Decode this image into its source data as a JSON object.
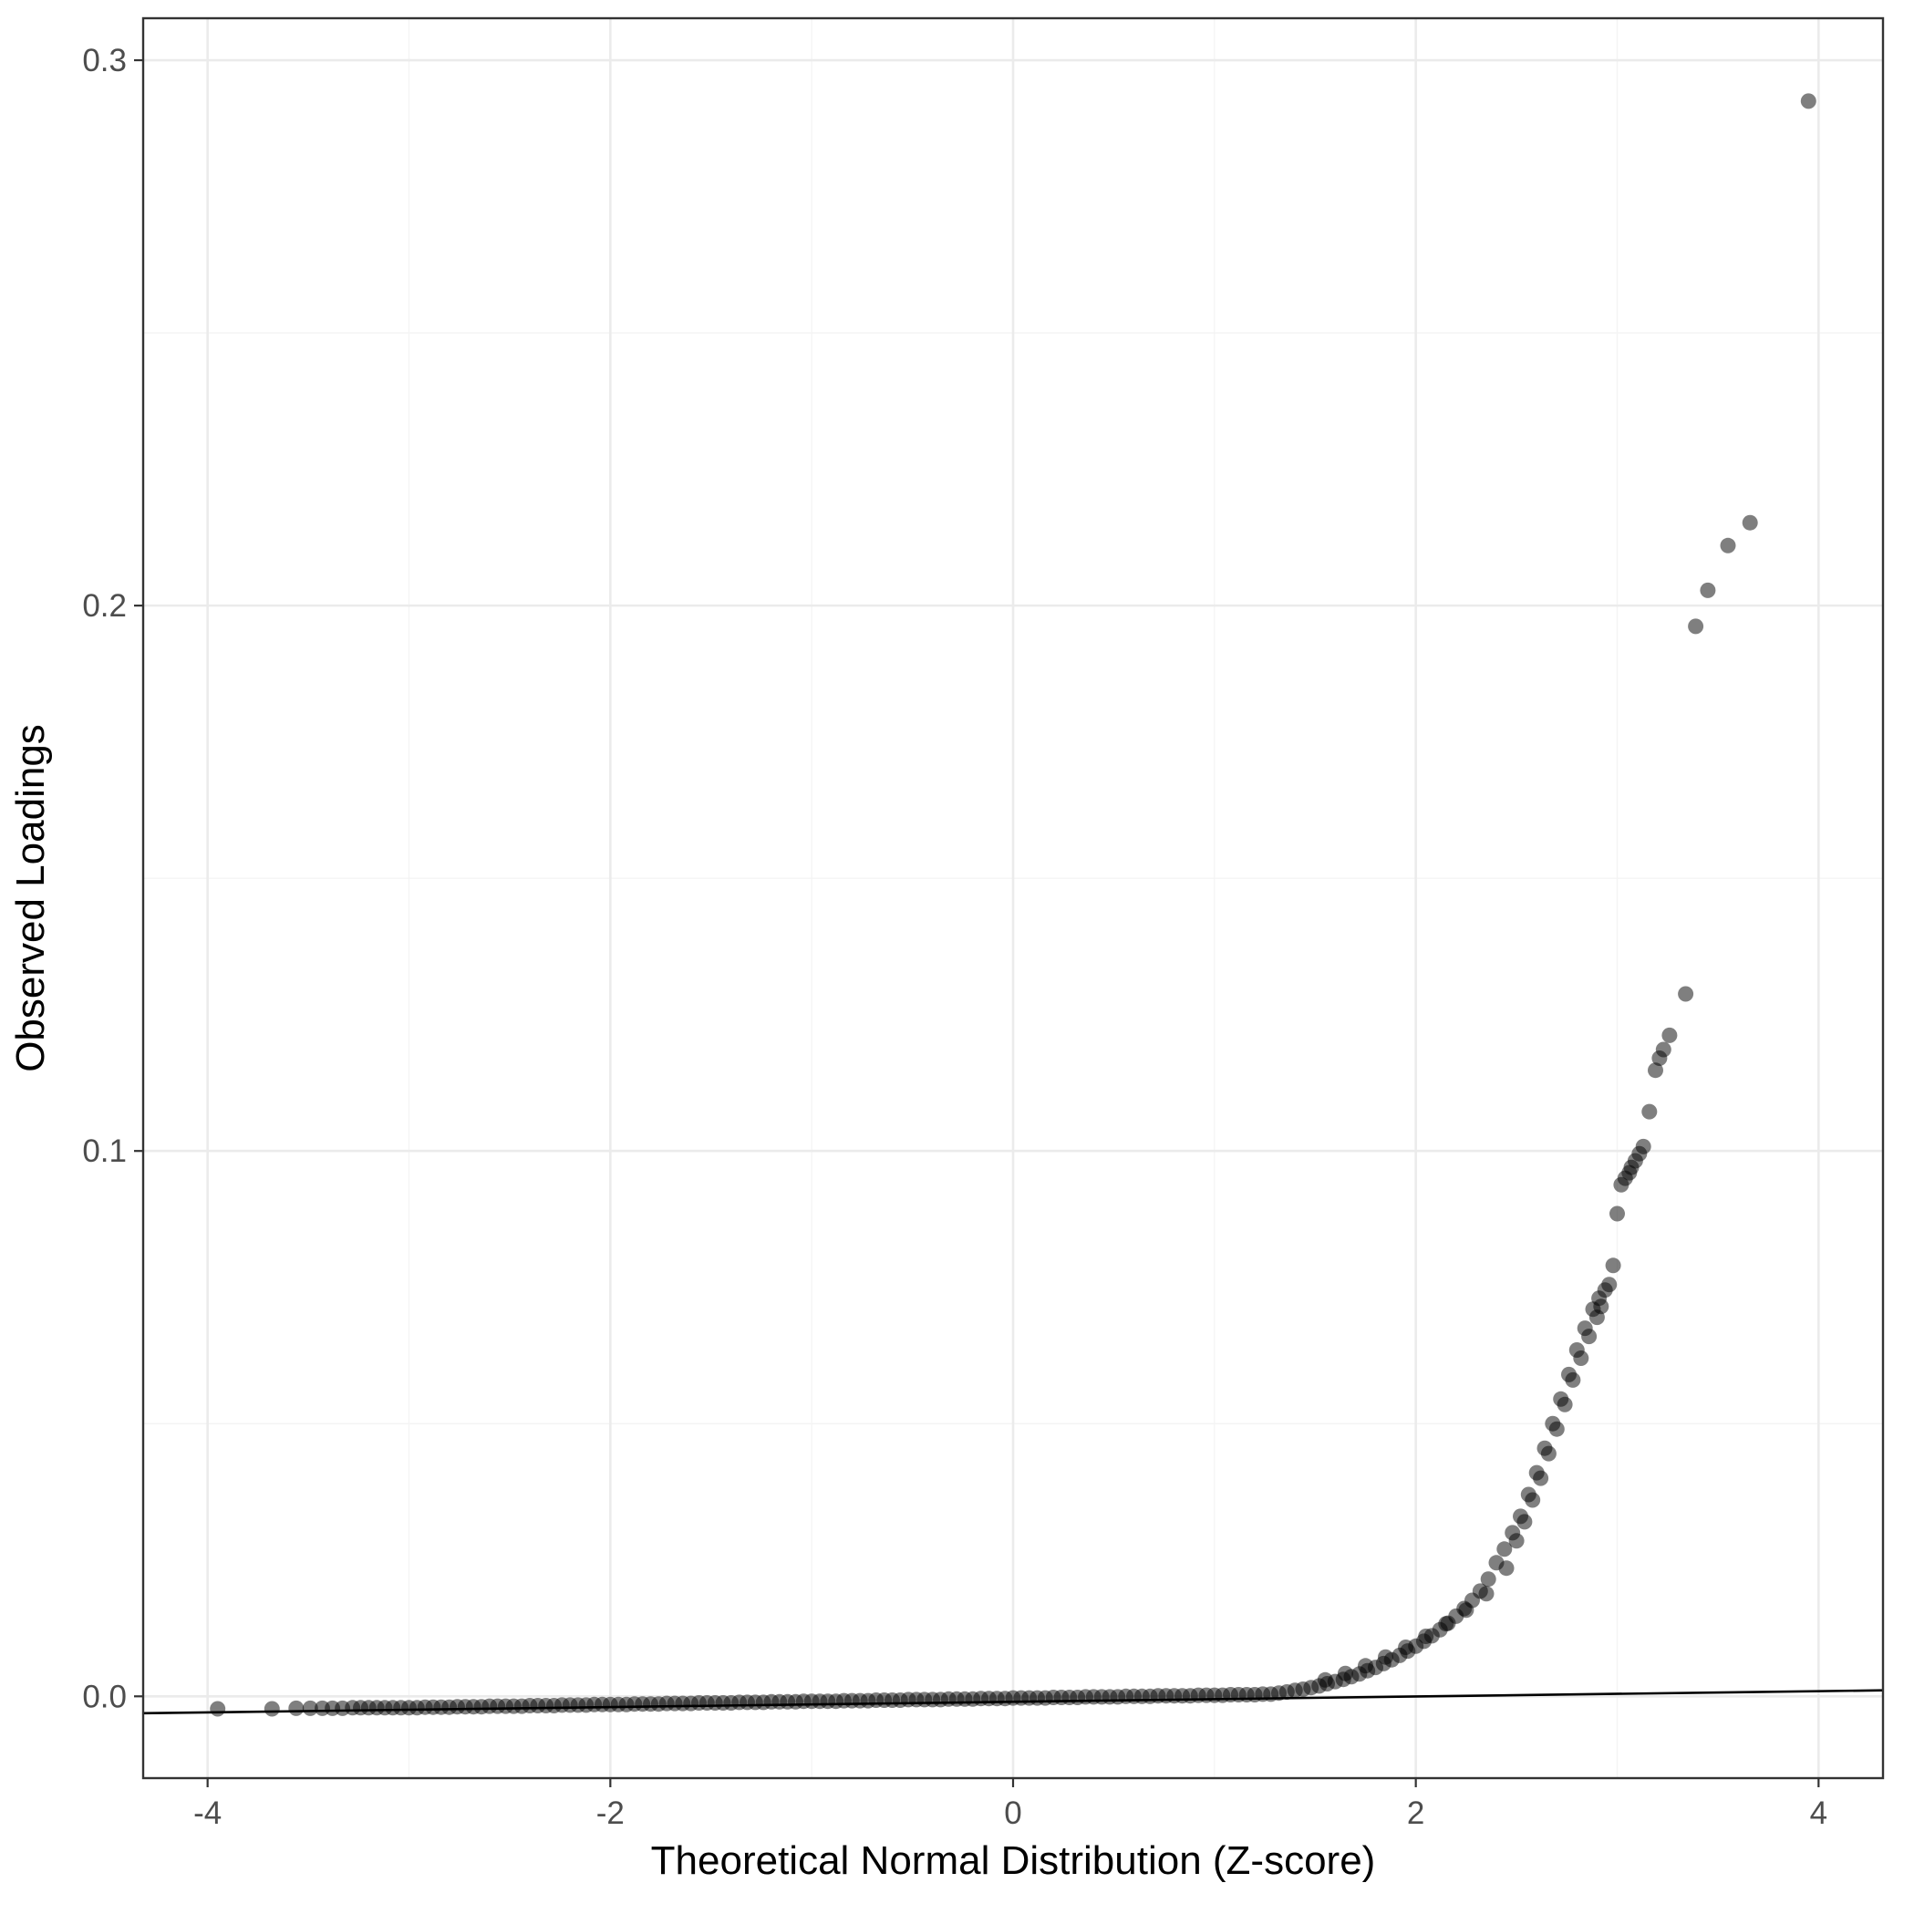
{
  "figure": {
    "background": "#ffffff"
  },
  "colors": {
    "grid_major": "#ebebeb",
    "grid_minor": "#f4f4f4",
    "panel_border": "#333333",
    "tick_text": "#4d4d4d",
    "point_color": "#000000",
    "reference_line_color": "#000000"
  },
  "chart_data": {
    "type": "scatter",
    "title": "",
    "xlabel": "Theoretical Normal Distribution (Z-score)",
    "ylabel": "Observed Loadings",
    "xlim": [
      -4.32,
      4.32
    ],
    "ylim": [
      -0.015,
      0.3077
    ],
    "grid": true,
    "legend_position": "none",
    "x_major_ticks": [
      -4,
      -2,
      0,
      2,
      4
    ],
    "x_tick_labels": [
      "-4",
      "-2",
      "0",
      "2",
      "4"
    ],
    "x_minor_ticks": [
      -3,
      -1,
      1,
      3
    ],
    "y_major_ticks": [
      0.0,
      0.1,
      0.2,
      0.3
    ],
    "y_tick_labels": [
      "0.0",
      "0.1",
      "0.2",
      "0.3"
    ],
    "y_minor_ticks": [
      0.05,
      0.15,
      0.25
    ],
    "point_opacity": 0.5,
    "reference_line": {
      "x1": -4.32,
      "y1": -0.0031,
      "x2": 4.32,
      "y2": 0.0011
    },
    "points": [
      [
        -3.95,
        -0.0023
      ],
      [
        -3.68,
        -0.0023
      ],
      [
        -3.56,
        -0.0022
      ],
      [
        -3.49,
        -0.0022
      ],
      [
        -3.43,
        -0.0022
      ],
      [
        -3.38,
        -0.0022
      ],
      [
        -3.33,
        -0.0022
      ],
      [
        -3.28,
        -0.0021
      ],
      [
        -3.24,
        -0.0021
      ],
      [
        -3.2,
        -0.0021
      ],
      [
        -3.16,
        -0.0021
      ],
      [
        -3.12,
        -0.0021
      ],
      [
        -3.08,
        -0.0021
      ],
      [
        -3.04,
        -0.0021
      ],
      [
        -3.0,
        -0.0021
      ],
      [
        -2.96,
        -0.0021
      ],
      [
        -2.92,
        -0.002
      ],
      [
        -2.88,
        -0.002
      ],
      [
        -2.84,
        -0.002
      ],
      [
        -2.8,
        -0.002
      ],
      [
        -2.76,
        -0.0019
      ],
      [
        -2.72,
        -0.0019
      ],
      [
        -2.68,
        -0.0019
      ],
      [
        -2.64,
        -0.0019
      ],
      [
        -2.6,
        -0.0018
      ],
      [
        -2.56,
        -0.0018
      ],
      [
        -2.52,
        -0.0018
      ],
      [
        -2.48,
        -0.0018
      ],
      [
        -2.44,
        -0.0018
      ],
      [
        -2.4,
        -0.0017
      ],
      [
        -2.36,
        -0.0017
      ],
      [
        -2.32,
        -0.0017
      ],
      [
        -2.28,
        -0.0017
      ],
      [
        -2.24,
        -0.0016
      ],
      [
        -2.2,
        -0.0016
      ],
      [
        -2.16,
        -0.0016
      ],
      [
        -2.12,
        -0.0016
      ],
      [
        -2.08,
        -0.0015
      ],
      [
        -2.04,
        -0.0015
      ],
      [
        -2.0,
        -0.0015
      ],
      [
        -1.96,
        -0.0015
      ],
      [
        -1.92,
        -0.0015
      ],
      [
        -1.88,
        -0.0014
      ],
      [
        -1.84,
        -0.0014
      ],
      [
        -1.8,
        -0.0014
      ],
      [
        -1.76,
        -0.0014
      ],
      [
        -1.72,
        -0.0013
      ],
      [
        -1.68,
        -0.0013
      ],
      [
        -1.64,
        -0.0013
      ],
      [
        -1.6,
        -0.0013
      ],
      [
        -1.56,
        -0.0012
      ],
      [
        -1.52,
        -0.0012
      ],
      [
        -1.48,
        -0.0012
      ],
      [
        -1.44,
        -0.0012
      ],
      [
        -1.4,
        -0.0012
      ],
      [
        -1.36,
        -0.0011
      ],
      [
        -1.32,
        -0.0011
      ],
      [
        -1.28,
        -0.0011
      ],
      [
        -1.24,
        -0.0011
      ],
      [
        -1.2,
        -0.001
      ],
      [
        -1.16,
        -0.001
      ],
      [
        -1.12,
        -0.001
      ],
      [
        -1.08,
        -0.001
      ],
      [
        -1.04,
        -0.0009
      ],
      [
        -1.0,
        -0.0009
      ],
      [
        -0.96,
        -0.0009
      ],
      [
        -0.92,
        -0.0009
      ],
      [
        -0.88,
        -0.0009
      ],
      [
        -0.84,
        -0.0008
      ],
      [
        -0.8,
        -0.0008
      ],
      [
        -0.76,
        -0.0008
      ],
      [
        -0.72,
        -0.0008
      ],
      [
        -0.68,
        -0.0007
      ],
      [
        -0.64,
        -0.0007
      ],
      [
        -0.6,
        -0.0007
      ],
      [
        -0.56,
        -0.0007
      ],
      [
        -0.52,
        -0.0006
      ],
      [
        -0.48,
        -0.0006
      ],
      [
        -0.44,
        -0.0006
      ],
      [
        -0.4,
        -0.0006
      ],
      [
        -0.36,
        -0.0006
      ],
      [
        -0.32,
        -0.0005
      ],
      [
        -0.28,
        -0.0005
      ],
      [
        -0.24,
        -0.0005
      ],
      [
        -0.2,
        -0.0005
      ],
      [
        -0.16,
        -0.0004
      ],
      [
        -0.12,
        -0.0004
      ],
      [
        -0.08,
        -0.0004
      ],
      [
        -0.04,
        -0.0004
      ],
      [
        0.0,
        -0.0003
      ],
      [
        0.04,
        -0.0003
      ],
      [
        0.08,
        -0.0003
      ],
      [
        0.12,
        -0.0003
      ],
      [
        0.16,
        -0.0003
      ],
      [
        0.2,
        -0.0002
      ],
      [
        0.24,
        -0.0002
      ],
      [
        0.28,
        -0.0002
      ],
      [
        0.32,
        -0.0002
      ],
      [
        0.36,
        -0.0001
      ],
      [
        0.4,
        -0.0001
      ],
      [
        0.44,
        -0.0001
      ],
      [
        0.48,
        -0.0001
      ],
      [
        0.52,
        -0.0001
      ],
      [
        0.56,
        0.0
      ],
      [
        0.6,
        0.0
      ],
      [
        0.64,
        0.0
      ],
      [
        0.68,
        0.0
      ],
      [
        0.72,
        0.0001
      ],
      [
        0.76,
        0.0001
      ],
      [
        0.8,
        0.0001
      ],
      [
        0.84,
        0.0001
      ],
      [
        0.88,
        0.0001
      ],
      [
        0.92,
        0.0002
      ],
      [
        0.96,
        0.0002
      ],
      [
        1.0,
        0.0002
      ],
      [
        1.04,
        0.0002
      ],
      [
        1.08,
        0.0003
      ],
      [
        1.12,
        0.0003
      ],
      [
        1.16,
        0.0003
      ],
      [
        1.2,
        0.0003
      ],
      [
        1.24,
        0.0004
      ],
      [
        1.28,
        0.0004
      ],
      [
        1.32,
        0.0006
      ],
      [
        1.36,
        0.0008
      ],
      [
        1.4,
        0.0011
      ],
      [
        1.44,
        0.0013
      ],
      [
        1.48,
        0.0016
      ],
      [
        1.52,
        0.0019
      ],
      [
        1.56,
        0.0023
      ],
      [
        1.6,
        0.0027
      ],
      [
        1.64,
        0.0031
      ],
      [
        1.68,
        0.0036
      ],
      [
        1.72,
        0.0041
      ],
      [
        1.76,
        0.0047
      ],
      [
        1.8,
        0.0053
      ],
      [
        1.84,
        0.006
      ],
      [
        1.88,
        0.0067
      ],
      [
        1.92,
        0.0075
      ],
      [
        1.96,
        0.0083
      ],
      [
        2.0,
        0.0092
      ],
      [
        2.04,
        0.0101
      ],
      [
        2.08,
        0.0111
      ],
      [
        2.12,
        0.0122
      ],
      [
        2.16,
        0.0134
      ],
      [
        2.2,
        0.0147
      ],
      [
        2.24,
        0.0161
      ],
      [
        2.28,
        0.0176
      ],
      [
        2.32,
        0.0193
      ],
      [
        2.36,
        0.0215
      ],
      [
        2.4,
        0.0245
      ],
      [
        2.44,
        0.027
      ],
      [
        2.48,
        0.03
      ],
      [
        2.52,
        0.033
      ],
      [
        2.56,
        0.037
      ],
      [
        2.6,
        0.041
      ],
      [
        2.64,
        0.0455
      ],
      [
        2.68,
        0.05
      ],
      [
        2.72,
        0.0545
      ],
      [
        2.76,
        0.059
      ],
      [
        2.8,
        0.0635
      ],
      [
        2.84,
        0.0675
      ],
      [
        2.88,
        0.071
      ],
      [
        2.91,
        0.073
      ],
      [
        2.94,
        0.0745
      ],
      [
        2.96,
        0.0755
      ],
      [
        1.55,
        0.003
      ],
      [
        1.65,
        0.0042
      ],
      [
        1.75,
        0.0056
      ],
      [
        1.85,
        0.0072
      ],
      [
        1.95,
        0.009
      ],
      [
        2.05,
        0.011
      ],
      [
        2.15,
        0.0133
      ],
      [
        2.25,
        0.0158
      ],
      [
        2.35,
        0.0188
      ],
      [
        2.45,
        0.0235
      ],
      [
        2.5,
        0.0285
      ],
      [
        2.54,
        0.032
      ],
      [
        2.58,
        0.036
      ],
      [
        2.62,
        0.04
      ],
      [
        2.66,
        0.0445
      ],
      [
        2.7,
        0.049
      ],
      [
        2.74,
        0.0535
      ],
      [
        2.78,
        0.058
      ],
      [
        2.82,
        0.062
      ],
      [
        2.86,
        0.066
      ],
      [
        2.9,
        0.0695
      ],
      [
        2.92,
        0.0715
      ],
      [
        2.98,
        0.079
      ],
      [
        3.0,
        0.0885
      ],
      [
        3.02,
        0.0938
      ],
      [
        3.04,
        0.095
      ],
      [
        3.06,
        0.096
      ],
      [
        3.07,
        0.097
      ],
      [
        3.09,
        0.0982
      ],
      [
        3.11,
        0.0995
      ],
      [
        3.13,
        0.1008
      ],
      [
        3.16,
        0.1072
      ],
      [
        3.19,
        0.1148
      ],
      [
        3.21,
        0.117
      ],
      [
        3.23,
        0.1186
      ],
      [
        3.26,
        0.1212
      ],
      [
        3.34,
        0.1288
      ],
      [
        3.39,
        0.1962
      ],
      [
        3.45,
        0.2028
      ],
      [
        3.55,
        0.211
      ],
      [
        3.66,
        0.2152
      ],
      [
        3.95,
        0.2925
      ]
    ]
  }
}
